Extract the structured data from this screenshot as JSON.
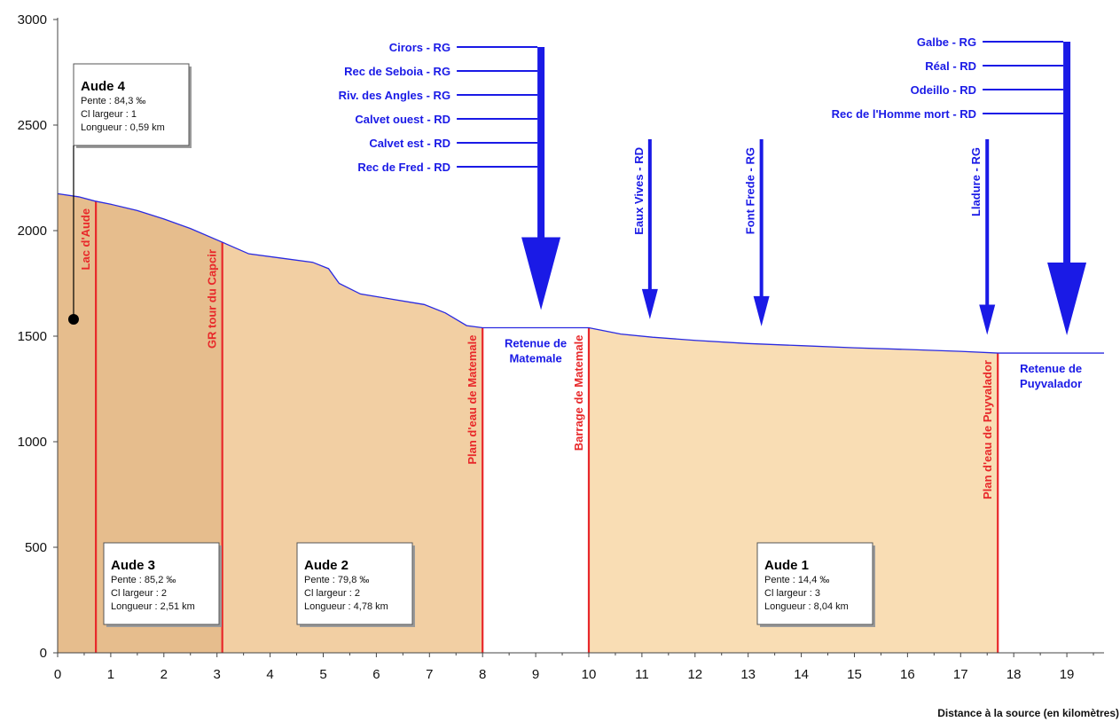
{
  "chart_data": {
    "type": "area",
    "title": "",
    "xlabel": "Distance à la source (en kilomètres)",
    "ylabel": "",
    "xlim": [
      0,
      19.7
    ],
    "ylim": [
      0,
      3000
    ],
    "xticks": [
      "0",
      "1",
      "2",
      "3",
      "4",
      "5",
      "6",
      "7",
      "8",
      "9",
      "10",
      "11",
      "12",
      "13",
      "14",
      "15",
      "16",
      "17",
      "18",
      "19"
    ],
    "yticks": [
      "0",
      "500",
      "1000",
      "1500",
      "2000",
      "2500",
      "3000"
    ],
    "grid": false,
    "profile": {
      "x": [
        0,
        0.4,
        0.7,
        1.0,
        1.5,
        2.0,
        2.5,
        3.1,
        3.6,
        4.2,
        4.8,
        5.1,
        5.3,
        5.7,
        6.3,
        6.9,
        7.3,
        7.7,
        8.0,
        10.0,
        10.2,
        10.6,
        11.2,
        12.0,
        13.0,
        14.0,
        15.0,
        16.0,
        17.0,
        17.7,
        19.7
      ],
      "y": [
        2175,
        2160,
        2140,
        2125,
        2095,
        2055,
        2010,
        1945,
        1890,
        1870,
        1850,
        1820,
        1750,
        1700,
        1675,
        1650,
        1610,
        1550,
        1540,
        1540,
        1530,
        1510,
        1495,
        1480,
        1465,
        1455,
        1445,
        1437,
        1428,
        1420,
        1420
      ]
    },
    "reservoirs": [
      {
        "x0": 8.0,
        "x1": 10.0,
        "level": 1540,
        "label_lines": [
          "Retenue de",
          "Matemale"
        ]
      },
      {
        "x0": 17.7,
        "x1": 19.7,
        "level": 1420,
        "label_lines": [
          "Retenue de",
          "Puyvalador"
        ]
      }
    ],
    "segments": [
      {
        "x0": 0,
        "x1": 3.1,
        "color": "#e6bd8d"
      },
      {
        "x0": 3.1,
        "x1": 8.0,
        "color": "#f2cfa3"
      },
      {
        "x0": 10.0,
        "x1": 17.7,
        "color": "#f9ddb4"
      }
    ],
    "markers": [
      {
        "x": 0.72,
        "label": "Lac d'Aude"
      },
      {
        "x": 3.1,
        "label": "GR tour du Capcir"
      },
      {
        "x": 8.0,
        "label": "Plan d'eau de Matemale"
      },
      {
        "x": 10.0,
        "label": "Barrage de Matemale"
      },
      {
        "x": 17.7,
        "label": "Plan d'eau de Puyvalador"
      }
    ],
    "tributary_groups": [
      {
        "x": 9.1,
        "labels": [
          "Cirors - RG",
          "Rec de Seboia - RG",
          "Riv. des Angles - RG",
          "Calvet ouest - RD",
          "Calvet est - RD",
          "Rec de Fred - RD"
        ]
      },
      {
        "x": 19.0,
        "labels": [
          "Galbe - RG",
          "Réal - RD",
          "Odeillo - RD",
          "Rec de l'Homme mort - RD"
        ]
      }
    ],
    "tributaries": [
      {
        "x": 11.15,
        "label": "Eaux Vives - RD"
      },
      {
        "x": 13.25,
        "label": "Font Frede - RG"
      },
      {
        "x": 17.5,
        "label": "Lladure - RG"
      }
    ],
    "reaches": [
      {
        "name": "Aude 4",
        "lines": [
          "Pente : 84,3 ‰",
          "Cl largeur : 1",
          "Longueur : 0,59 km"
        ]
      },
      {
        "name": "Aude 3",
        "lines": [
          "Pente : 85,2 ‰",
          "Cl largeur : 2",
          "Longueur : 2,51 km"
        ]
      },
      {
        "name": "Aude 2",
        "lines": [
          "Pente : 79,8 ‰",
          "Cl largeur : 2",
          "Longueur : 4,78 km"
        ]
      },
      {
        "name": "Aude 1",
        "lines": [
          "Pente : 14,4 ‰",
          "Cl largeur : 3",
          "Longueur : 8,04 km"
        ]
      }
    ],
    "colors": {
      "profile_line": "#2a2ae0",
      "marker_line": "#e8282a",
      "arrow": "#1a1ae6",
      "axis": "#444444"
    }
  }
}
